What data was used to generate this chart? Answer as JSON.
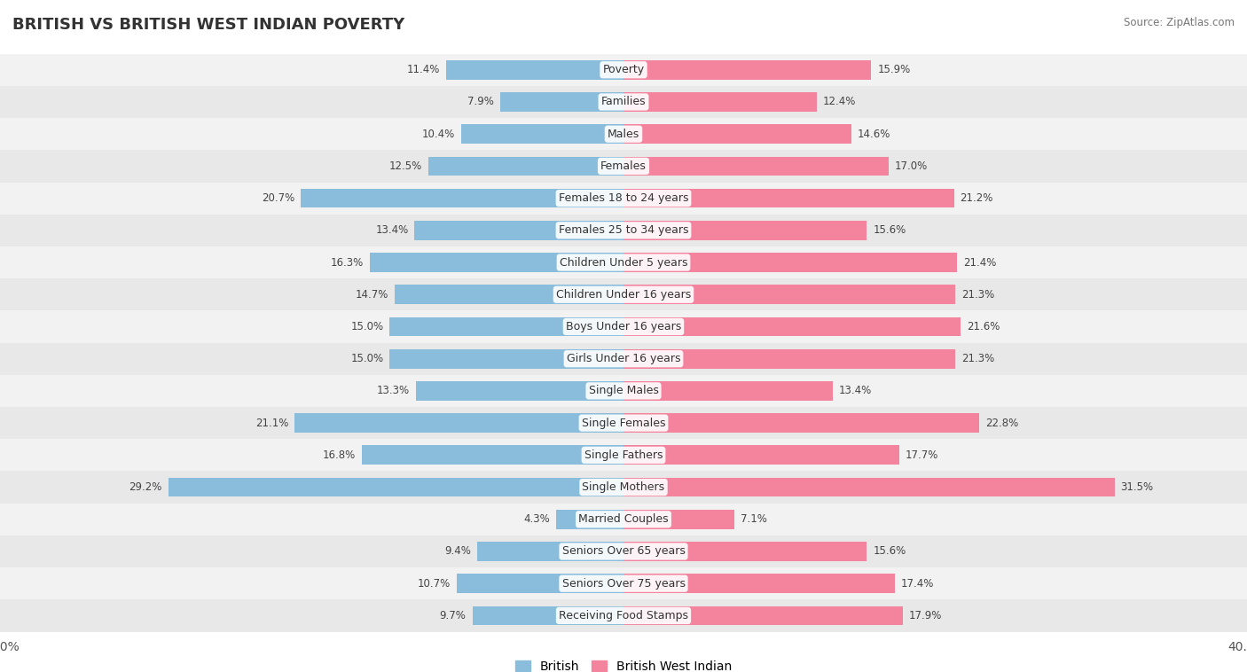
{
  "title": "BRITISH VS BRITISH WEST INDIAN POVERTY",
  "source": "Source: ZipAtlas.com",
  "categories": [
    "Poverty",
    "Families",
    "Males",
    "Females",
    "Females 18 to 24 years",
    "Females 25 to 34 years",
    "Children Under 5 years",
    "Children Under 16 years",
    "Boys Under 16 years",
    "Girls Under 16 years",
    "Single Males",
    "Single Females",
    "Single Fathers",
    "Single Mothers",
    "Married Couples",
    "Seniors Over 65 years",
    "Seniors Over 75 years",
    "Receiving Food Stamps"
  ],
  "british": [
    11.4,
    7.9,
    10.4,
    12.5,
    20.7,
    13.4,
    16.3,
    14.7,
    15.0,
    15.0,
    13.3,
    21.1,
    16.8,
    29.2,
    4.3,
    9.4,
    10.7,
    9.7
  ],
  "bwi": [
    15.9,
    12.4,
    14.6,
    17.0,
    21.2,
    15.6,
    21.4,
    21.3,
    21.6,
    21.3,
    13.4,
    22.8,
    17.7,
    31.5,
    7.1,
    15.6,
    17.4,
    17.9
  ],
  "british_color": "#89bddb",
  "bwi_color": "#f4839e",
  "row_bg_even": "#f2f2f2",
  "row_bg_odd": "#e8e8e8",
  "xlim": 40.0,
  "label_fontsize": 9.0,
  "value_fontsize": 8.5,
  "title_fontsize": 13,
  "bar_height": 0.6,
  "legend_labels": [
    "British",
    "British West Indian"
  ]
}
